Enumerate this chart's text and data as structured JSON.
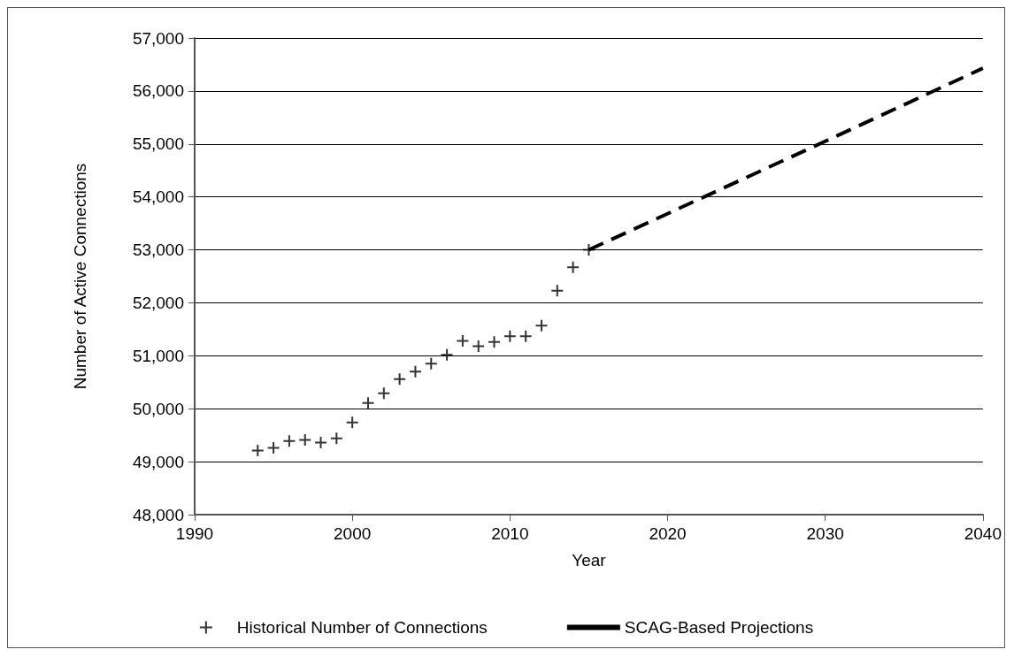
{
  "chart_data": {
    "type": "scatter",
    "xlabel": "Year",
    "ylabel": "Number of Active Connections",
    "xlim": [
      1990,
      2040
    ],
    "xticks": [
      1990,
      2000,
      2010,
      2020,
      2030,
      2040
    ],
    "ylim": [
      48000,
      57000
    ],
    "yticks": [
      {
        "value": 48000,
        "label": "48,000"
      },
      {
        "value": 49000,
        "label": "49,000"
      },
      {
        "value": 50000,
        "label": "50,000"
      },
      {
        "value": 51000,
        "label": "51,000"
      },
      {
        "value": 52000,
        "label": "52,000"
      },
      {
        "value": 53000,
        "label": "53,000"
      },
      {
        "value": 54000,
        "label": "54,000"
      },
      {
        "value": 55000,
        "label": "55,000"
      },
      {
        "value": 56000,
        "label": "56,000"
      },
      {
        "value": 57000,
        "label": "57,000"
      }
    ],
    "grid": "y",
    "legend": "bottom",
    "series": [
      {
        "name": "Historical Number of Connections",
        "marker": "cross",
        "color": "#000000",
        "x": [
          1994,
          1995,
          1996,
          1997,
          1998,
          1999,
          2000,
          2001,
          2002,
          2003,
          2004,
          2005,
          2006,
          2007,
          2008,
          2009,
          2010,
          2011,
          2012,
          2013,
          2014,
          2015
        ],
        "values": [
          49210,
          49260,
          49390,
          49410,
          49360,
          49440,
          49740,
          50110,
          50290,
          50560,
          50700,
          50850,
          51020,
          51280,
          51180,
          51260,
          51370,
          51370,
          51570,
          52230,
          52670,
          53000
        ]
      },
      {
        "name": "SCAG-Based Projections",
        "type": "line",
        "marker": "none",
        "line_style": "dashed",
        "color": "#000000",
        "x": [
          2015,
          2030,
          2040
        ],
        "values": [
          53000,
          55050,
          56430
        ]
      }
    ]
  }
}
